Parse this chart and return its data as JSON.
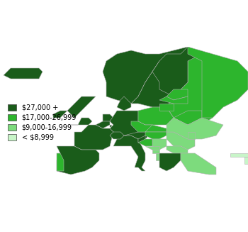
{
  "title": "",
  "legend_labels": [
    "$27,000 +",
    "$17,000-26,999",
    "$9,000-16,999",
    "< $8,999"
  ],
  "legend_colors": [
    "#1a5c1a",
    "#2db52d",
    "#7ddb7d",
    "#c8f5c8"
  ],
  "border_color": "#b0b0b0",
  "background_color": "#ffffff",
  "ocean_color": "#ffffff",
  "country_colors": {
    "IS": "#1a5c1a",
    "NO": "#1a5c1a",
    "SE": "#1a5c1a",
    "FI": "#1a5c1a",
    "DK": "#1a5c1a",
    "GB": "#1a5c1a",
    "IE": "#1a5c1a",
    "NL": "#1a5c1a",
    "BE": "#1a5c1a",
    "LU": "#1a5c1a",
    "DE": "#1a5c1a",
    "AT": "#1a5c1a",
    "CH": "#1a5c1a",
    "FR": "#1a5c1a",
    "PT": "#1a5c1a",
    "ES": "#1a5c1a",
    "IT": "#1a5c1a",
    "GR": "#1a5c1a",
    "SI": "#1a5c1a",
    "CY": "#1a5c1a",
    "RU": "#2db52d",
    "EE": "#2db52d",
    "LV": "#2db52d",
    "LT": "#2db52d",
    "PL": "#2db52d",
    "CZ": "#2db52d",
    "SK": "#2db52d",
    "HU": "#2db52d",
    "HR": "#2db52d",
    "BY": "#2db52d",
    "UA": "#7ddb7d",
    "RO": "#7ddb7d",
    "BG": "#7ddb7d",
    "RS": "#7ddb7d",
    "BA": "#7ddb7d",
    "ME": "#7ddb7d",
    "MK": "#7ddb7d",
    "AL": "#7ddb7d",
    "MD": "#7ddb7d",
    "TR": "#7ddb7d",
    "XK": "#c8f5c8",
    "GE": "#c8f5c8",
    "AM": "#c8f5c8",
    "AZ": "#c8f5c8"
  },
  "figsize": [
    3.5,
    3.27
  ],
  "dpi": 100,
  "xlim": [
    -25,
    45
  ],
  "ylim": [
    33,
    72
  ],
  "legend_fontsize": 7
}
